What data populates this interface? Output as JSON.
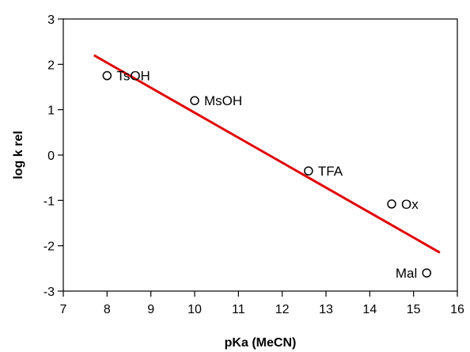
{
  "chart_data": {
    "type": "scatter",
    "title": "",
    "xlabel": "pKa (MeCN)",
    "ylabel": "log  k rel",
    "xlim": [
      7,
      16
    ],
    "ylim": [
      -3,
      3
    ],
    "xticks": [
      7,
      8,
      9,
      10,
      11,
      12,
      13,
      14,
      15,
      16
    ],
    "yticks": [
      -3,
      -2,
      -1,
      0,
      1,
      2,
      3
    ],
    "grid": false,
    "legend": "none",
    "points": [
      {
        "label": "TsOH",
        "x": 8.0,
        "y": 1.75,
        "label_side": "right"
      },
      {
        "label": "MsOH",
        "x": 10.0,
        "y": 1.2,
        "label_side": "right"
      },
      {
        "label": "TFA",
        "x": 12.6,
        "y": -0.35,
        "label_side": "right"
      },
      {
        "label": "Ox",
        "x": 14.5,
        "y": -1.08,
        "label_side": "right"
      },
      {
        "label": "Mal",
        "x": 15.3,
        "y": -2.6,
        "label_side": "left"
      }
    ],
    "fit_line": {
      "x": [
        7.7,
        15.6
      ],
      "y": [
        2.2,
        -2.15
      ],
      "color": "#e00000"
    },
    "marker": "open-circle"
  }
}
